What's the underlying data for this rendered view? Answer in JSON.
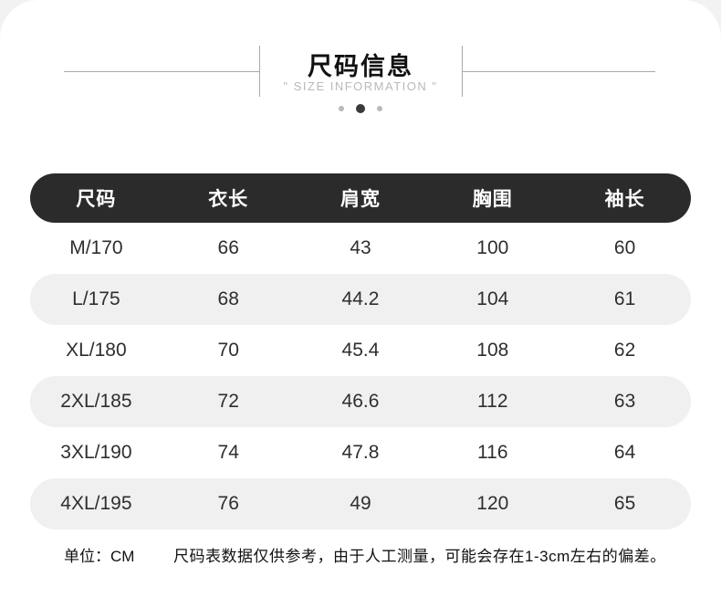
{
  "header": {
    "title": "尺码信息",
    "subtitle": "\" SIZE INFORMATION \"",
    "carousel": {
      "dot_count": 3,
      "active_index": 1
    }
  },
  "table": {
    "columns": [
      "尺码",
      "衣长",
      "肩宽",
      "胸围",
      "袖长"
    ],
    "rows": [
      [
        "M/170",
        "66",
        "43",
        "100",
        "60"
      ],
      [
        "L/175",
        "68",
        "44.2",
        "104",
        "61"
      ],
      [
        "XL/180",
        "70",
        "45.4",
        "108",
        "62"
      ],
      [
        "2XL/185",
        "72",
        "46.6",
        "112",
        "63"
      ],
      [
        "3XL/190",
        "74",
        "47.8",
        "116",
        "64"
      ],
      [
        "4XL/195",
        "76",
        "49",
        "120",
        "65"
      ]
    ],
    "colors": {
      "header_bg": "#2b2b2b",
      "header_text": "#ffffff",
      "alt_row_bg": "#f0f0f0",
      "body_text": "#2e2e2e",
      "decor_line": "#a9a9a9"
    }
  },
  "note": {
    "unit": "单位：CM",
    "disclaimer": "尺码表数据仅供参考，由于人工测量，可能会存在1-3cm左右的偏差。"
  }
}
